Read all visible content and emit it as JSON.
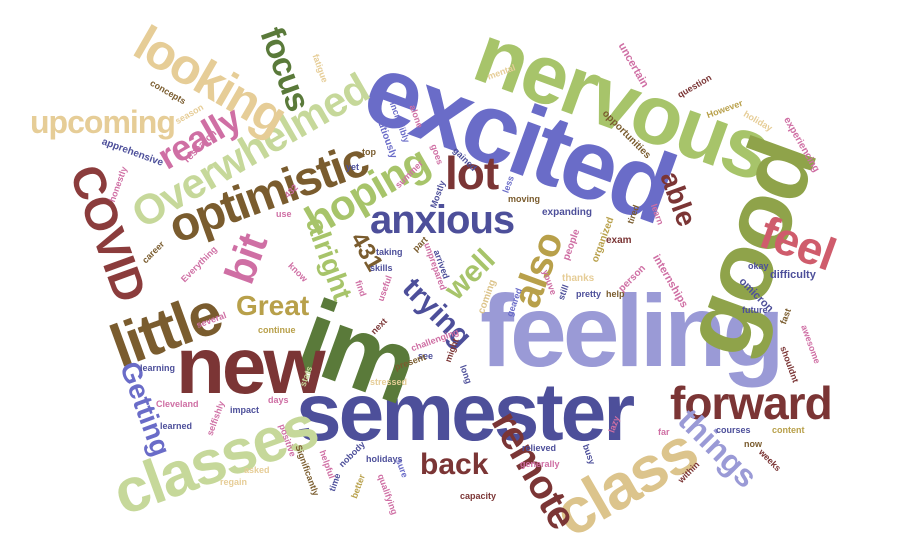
{
  "words": [
    {
      "text": "feeling",
      "color": "#9a9ad6"
    },
    {
      "text": "semester",
      "color": "#4d4f9a"
    },
    {
      "text": "excited",
      "color": "#6a6cc8"
    },
    {
      "text": "im",
      "color": "#5a7a3a"
    },
    {
      "text": "nervous",
      "color": "#a7c46a"
    },
    {
      "text": "good",
      "color": "#8fa34a"
    },
    {
      "text": "new",
      "color": "#7b3535"
    },
    {
      "text": "classes",
      "color": "#c6d89a"
    },
    {
      "text": "little",
      "color": "#7a5c2e"
    },
    {
      "text": "class",
      "color": "#dcc48c"
    },
    {
      "text": "forward",
      "color": "#7b3535"
    },
    {
      "text": "optimistic",
      "color": "#7a5c2e"
    },
    {
      "text": "Overwhelmed",
      "color": "#c6d89a"
    },
    {
      "text": "looking",
      "color": "#e6cd97"
    },
    {
      "text": "anxious",
      "color": "#4d4f9a"
    },
    {
      "text": "COVID",
      "color": "#8b3c3c"
    },
    {
      "text": "remote",
      "color": "#7b3535"
    },
    {
      "text": "also",
      "color": "#b8a04a"
    },
    {
      "text": "lot",
      "color": "#7b3535"
    },
    {
      "text": "hoping",
      "color": "#a7c46a"
    },
    {
      "text": "feel",
      "color": "#cf5c6c"
    },
    {
      "text": "bit",
      "color": "#cf6fa4"
    },
    {
      "text": "really",
      "color": "#cf6fa4"
    },
    {
      "text": "focus",
      "color": "#5a7a3a"
    },
    {
      "text": "upcoming",
      "color": "#e6cd97"
    },
    {
      "text": "Great",
      "color": "#b8a04a"
    },
    {
      "text": "alright",
      "color": "#a7c46a"
    },
    {
      "text": "trying",
      "color": "#4d4f9a"
    },
    {
      "text": "well",
      "color": "#a7c46a"
    },
    {
      "text": "back",
      "color": "#7b3535"
    },
    {
      "text": "things",
      "color": "#9a9ad6"
    },
    {
      "text": "Getting",
      "color": "#6a6cc8"
    },
    {
      "text": "able",
      "color": "#7b3535"
    },
    {
      "text": "431",
      "color": "#7a5c2e"
    },
    {
      "text": "difficulty",
      "color": "#4d4f9a"
    },
    {
      "text": "internships",
      "color": "#cf6fa4"
    },
    {
      "text": "omicron",
      "color": "#4d4f9a"
    },
    {
      "text": "thanks",
      "color": "#e6cd97"
    },
    {
      "text": "person",
      "color": "#cf6fa4"
    },
    {
      "text": "help",
      "color": "#7a5c2e"
    },
    {
      "text": "pretty",
      "color": "#4d4f9a"
    },
    {
      "text": "still",
      "color": "#4d4f9a"
    },
    {
      "text": "youve",
      "color": "#cf6fa4"
    },
    {
      "text": "coming",
      "color": "#dcc48c"
    },
    {
      "text": "geared",
      "color": "#6a6cc8"
    },
    {
      "text": "exam",
      "color": "#7b3535"
    },
    {
      "text": "people",
      "color": "#cf6fa4"
    },
    {
      "text": "organized",
      "color": "#b8a04a"
    },
    {
      "text": "expanding",
      "color": "#4d4f9a"
    },
    {
      "text": "moving",
      "color": "#7a5c2e"
    },
    {
      "text": "less",
      "color": "#6a6cc8"
    },
    {
      "text": "gained",
      "color": "#4d4f9a"
    },
    {
      "text": "goes",
      "color": "#cf6fa4"
    },
    {
      "text": "Mostly",
      "color": "#4d4f9a"
    },
    {
      "text": "summer",
      "color": "#cf6fa4"
    },
    {
      "text": "cautiously",
      "color": "#6a6cc8"
    },
    {
      "text": "incredibly",
      "color": "#6a6cc8"
    },
    {
      "text": "alone",
      "color": "#cf6fa4"
    },
    {
      "text": "top",
      "color": "#7a5c2e"
    },
    {
      "text": "yet",
      "color": "#4d4f9a"
    },
    {
      "text": "mental",
      "color": "#e6cd97"
    },
    {
      "text": "uncertain",
      "color": "#cf6fa4"
    },
    {
      "text": "question",
      "color": "#7b3535"
    },
    {
      "text": "However",
      "color": "#b8a04a"
    },
    {
      "text": "holiday",
      "color": "#e6cd97"
    },
    {
      "text": "experiencing",
      "color": "#cf6fa4"
    },
    {
      "text": "opportunities",
      "color": "#7a5c2e"
    },
    {
      "text": "concepts",
      "color": "#7a5c2e"
    },
    {
      "text": "season",
      "color": "#e6cd97"
    },
    {
      "text": "fatigue",
      "color": "#e6cd97"
    },
    {
      "text": "research",
      "color": "#cf6fa4"
    },
    {
      "text": "apprehensive",
      "color": "#4d4f9a"
    },
    {
      "text": "honestly",
      "color": "#cf6fa4"
    },
    {
      "text": "432",
      "color": "#cf6fa4"
    },
    {
      "text": "use",
      "color": "#cf6fa4"
    },
    {
      "text": "career",
      "color": "#7a5c2e"
    },
    {
      "text": "Everything",
      "color": "#cf6fa4"
    },
    {
      "text": "taking",
      "color": "#4d4f9a"
    },
    {
      "text": "skills",
      "color": "#4d4f9a"
    },
    {
      "text": "unprepared",
      "color": "#cf6fa4"
    },
    {
      "text": "arrived",
      "color": "#4d4f9a"
    },
    {
      "text": "part",
      "color": "#7a5c2e"
    },
    {
      "text": "find",
      "color": "#cf6fa4"
    },
    {
      "text": "useful",
      "color": "#cf6fa4"
    },
    {
      "text": "know",
      "color": "#cf6fa4"
    },
    {
      "text": "several",
      "color": "#cf6fa4"
    },
    {
      "text": "continue",
      "color": "#b8a04a"
    },
    {
      "text": "next",
      "color": "#7b3535"
    },
    {
      "text": "challenging",
      "color": "#cf6fa4"
    },
    {
      "text": "see",
      "color": "#4d4f9a"
    },
    {
      "text": "might",
      "color": "#7b3535"
    },
    {
      "text": "long",
      "color": "#4d4f9a"
    },
    {
      "text": "present",
      "color": "#7a5c2e"
    },
    {
      "text": "stressed",
      "color": "#e6cd97"
    },
    {
      "text": "learning",
      "color": "#4d4f9a"
    },
    {
      "text": "stats",
      "color": "#c6d89a"
    },
    {
      "text": "Cleveland",
      "color": "#cf6fa4"
    },
    {
      "text": "impact",
      "color": "#4d4f9a"
    },
    {
      "text": "days",
      "color": "#cf6fa4"
    },
    {
      "text": "selfishly",
      "color": "#cf6fa4"
    },
    {
      "text": "learned",
      "color": "#4d4f9a"
    },
    {
      "text": "positive",
      "color": "#cf6fa4"
    },
    {
      "text": "Significantly",
      "color": "#7a5c2e"
    },
    {
      "text": "helpful",
      "color": "#cf6fa4"
    },
    {
      "text": "nobody",
      "color": "#4d4f9a"
    },
    {
      "text": "holidays",
      "color": "#4d4f9a"
    },
    {
      "text": "sure",
      "color": "#6a6cc8"
    },
    {
      "text": "time",
      "color": "#4d4f9a"
    },
    {
      "text": "better",
      "color": "#b8a04a"
    },
    {
      "text": "asked",
      "color": "#e6cd97"
    },
    {
      "text": "regain",
      "color": "#e6cd97"
    },
    {
      "text": "relieved",
      "color": "#4d4f9a"
    },
    {
      "text": "generally",
      "color": "#cf6fa4"
    },
    {
      "text": "feeling2",
      "color": "#cf6fa4"
    },
    {
      "text": "capacity",
      "color": "#7b3535"
    },
    {
      "text": "busy",
      "color": "#4d4f9a"
    },
    {
      "text": "lazy",
      "color": "#cf6fa4"
    },
    {
      "text": "far",
      "color": "#cf6fa4"
    },
    {
      "text": "courses",
      "color": "#4d4f9a"
    },
    {
      "text": "within",
      "color": "#7b3535"
    },
    {
      "text": "now",
      "color": "#7a5c2e"
    },
    {
      "text": "content",
      "color": "#b8a04a"
    },
    {
      "text": "weeks",
      "color": "#7b3535"
    },
    {
      "text": "fast",
      "color": "#7a5c2e"
    },
    {
      "text": "awesome",
      "color": "#cf6fa4"
    },
    {
      "text": "shouldnt",
      "color": "#7b3535"
    },
    {
      "text": "future",
      "color": "#4d4f9a"
    },
    {
      "text": "okay",
      "color": "#4d4f9a"
    },
    {
      "text": "learn",
      "color": "#cf6fa4"
    },
    {
      "text": "tired",
      "color": "#7a5c2e"
    },
    {
      "text": "qualifying",
      "color": "#cf6fa4"
    },
    {
      "text": "fall",
      "color": "#4d4f9a"
    }
  ]
}
